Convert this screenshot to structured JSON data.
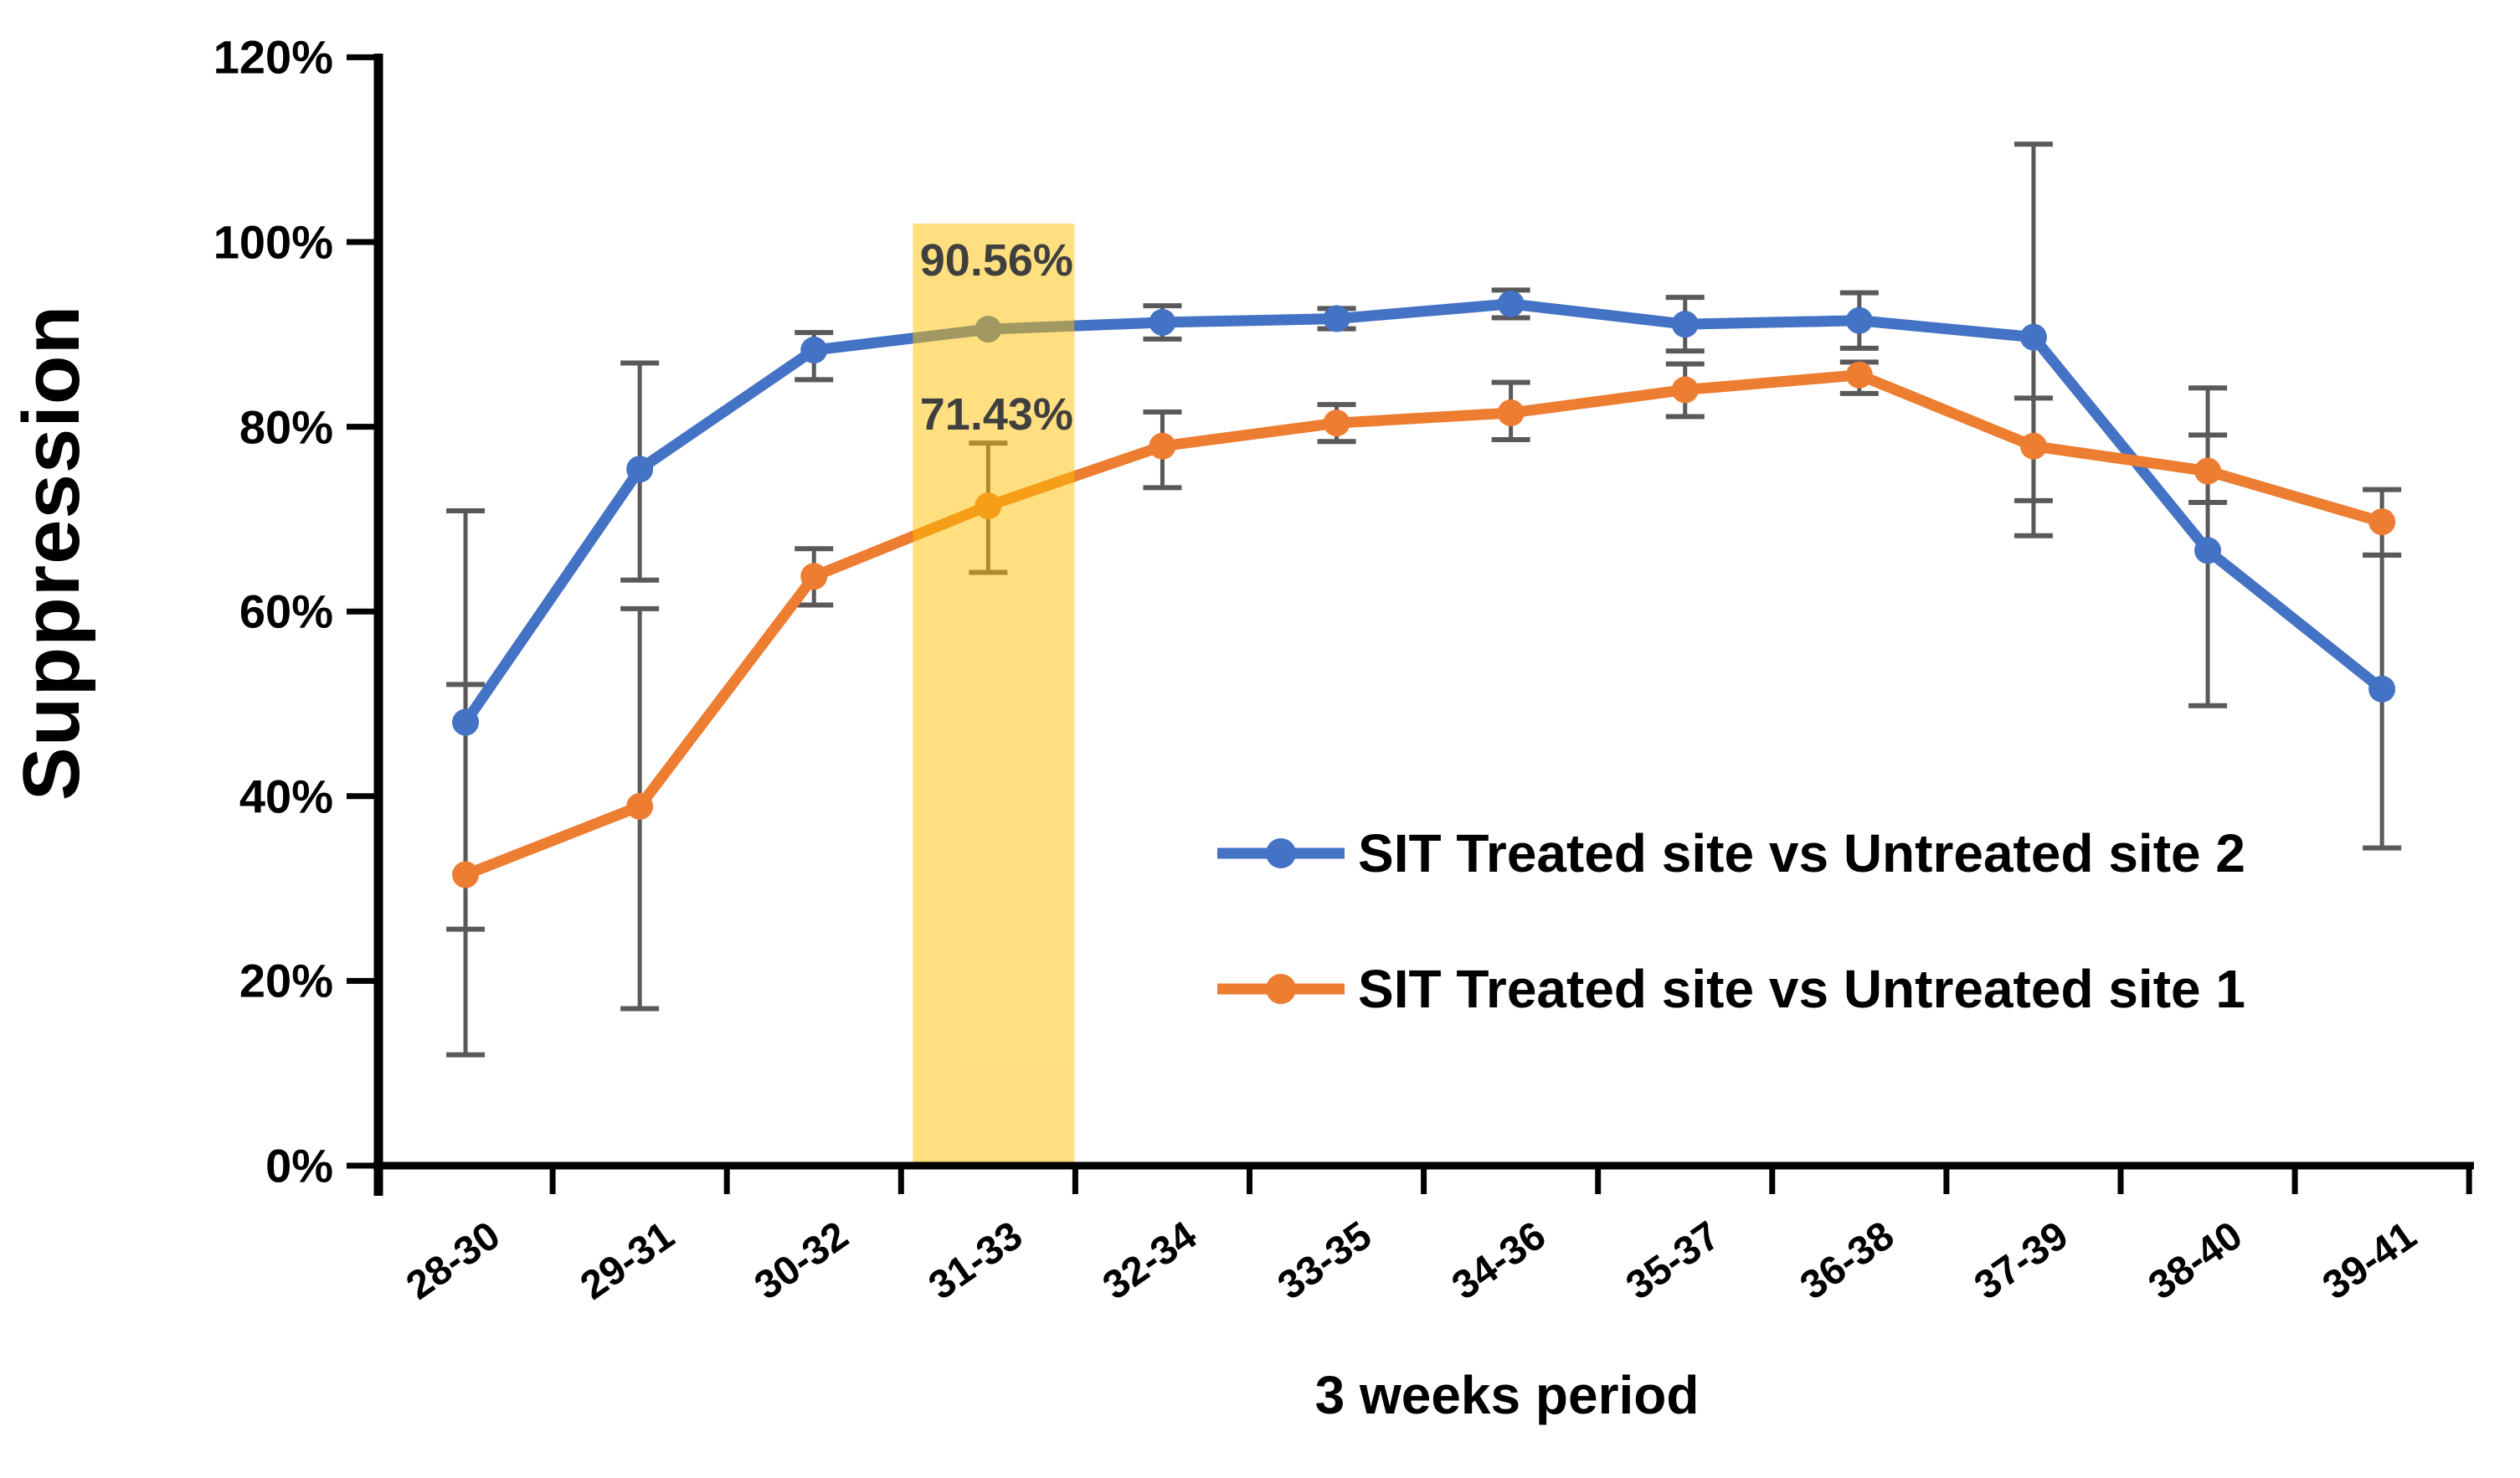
{
  "figure": {
    "background": "#ffffff"
  },
  "chart_data": {
    "type": "line",
    "title": "",
    "xlabel": "3 weeks period",
    "ylabel": "Suppression",
    "categories": [
      "28-30",
      "29-31",
      "30-32",
      "31-33",
      "32-34",
      "33-35",
      "34-36",
      "35-37",
      "36-38",
      "37-39",
      "38-40",
      "39-41"
    ],
    "y_tick_labels": [
      "0%",
      "20%",
      "40%",
      "60%",
      "80%",
      "100%",
      "120%"
    ],
    "ylim": [
      0,
      120
    ],
    "y_tick_step": 20,
    "grid": false,
    "legend_position": "inside lower right",
    "axis_color": "#000000",
    "error_bar_color": "#595959",
    "series": [
      {
        "name": "SIT Treated site vs Untreated site 2",
        "color": "#4472C4",
        "values": [
          48.0,
          75.4,
          88.3,
          90.56,
          91.3,
          91.7,
          93.3,
          91.1,
          91.5,
          89.7,
          66.6,
          51.6
        ],
        "error_plus": [
          22.9,
          11.5,
          1.9,
          0,
          1.8,
          1.1,
          1.5,
          2.9,
          3.0,
          20.9,
          17.6,
          14.5
        ],
        "error_minus": [
          22.4,
          12.0,
          3.2,
          0,
          1.8,
          1.1,
          1.5,
          2.9,
          3.0,
          21.5,
          16.8,
          17.2
        ]
      },
      {
        "name": "SIT Treated site vs Untreated site 1",
        "color": "#ED7D31",
        "values": [
          31.5,
          38.9,
          63.8,
          71.43,
          77.9,
          80.4,
          81.5,
          84.0,
          85.6,
          77.9,
          75.2,
          69.7
        ],
        "error_plus": [
          20.6,
          21.4,
          3.0,
          6.8,
          3.7,
          2.0,
          3.3,
          2.8,
          1.4,
          5.2,
          3.9,
          3.5
        ],
        "error_minus": [
          19.5,
          21.9,
          3.1,
          7.2,
          4.5,
          2.0,
          2.9,
          2.9,
          2.0,
          5.9,
          3.4,
          3.6
        ]
      }
    ],
    "highlight_band": {
      "category": "31-33",
      "category_index": 3,
      "color": "#FFC000",
      "opacity": 0.5,
      "top_value": 102
    },
    "annotations": [
      {
        "text": "90.56%",
        "series_index": 0,
        "category_index": 3,
        "color": "#3f3f3f",
        "dy": -55
      },
      {
        "text": "71.43%",
        "series_index": 1,
        "category_index": 3,
        "color": "#3f3f3f",
        "dy": -82
      }
    ]
  }
}
